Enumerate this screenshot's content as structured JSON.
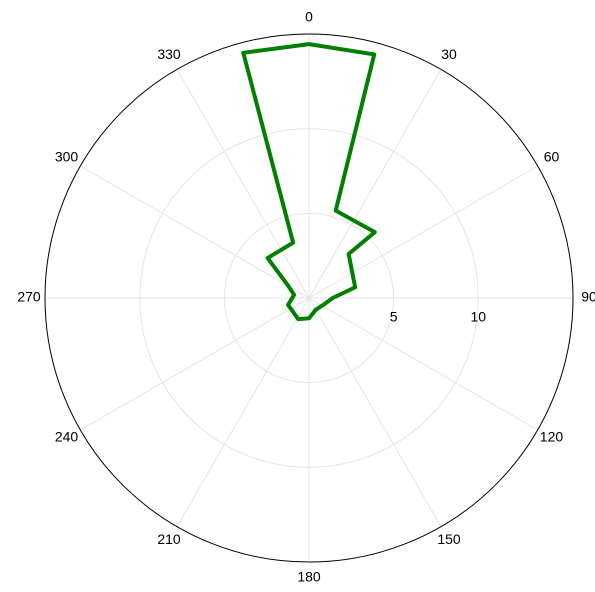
{
  "chart_data": {
    "type": "polar",
    "theta": [
      345,
      0,
      15,
      17,
      45,
      42,
      77,
      90,
      110,
      150,
      180,
      207,
      252,
      282,
      300,
      314,
      344
    ],
    "r": [
      15.0,
      15.0,
      14.9,
      5.4,
      5.5,
      3.5,
      2.8,
      1.4,
      1.0,
      0.8,
      1.2,
      1.4,
      1.3,
      0.9,
      1.4,
      3.4,
      3.4
    ],
    "color": "#008000",
    "rlim": [
      0,
      15.6
    ],
    "rticks": [
      5,
      10
    ],
    "thetaticks": [
      0,
      30,
      60,
      90,
      120,
      150,
      180,
      210,
      240,
      270,
      300,
      330
    ],
    "grid": true
  }
}
